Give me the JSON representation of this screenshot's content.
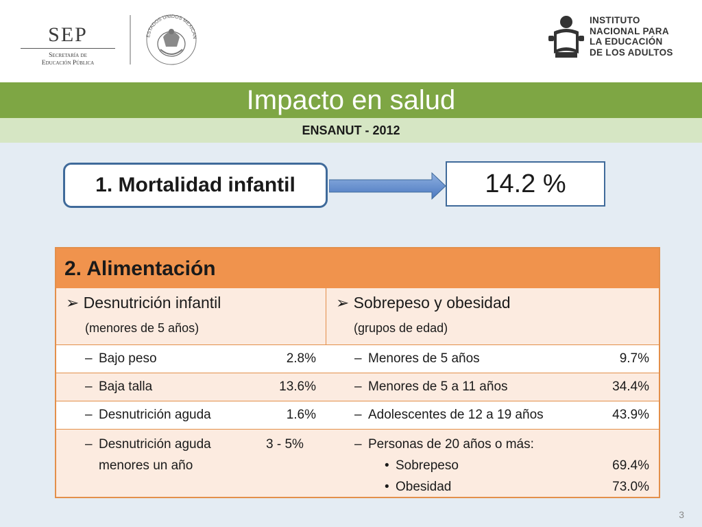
{
  "header": {
    "sep": {
      "title": "SEP",
      "subtitle_line1": "Secretaría de",
      "subtitle_line2": "Educación Pública"
    },
    "seal": {
      "caption": "ESTADOS UNIDOS MEXICANOS"
    },
    "inea": {
      "line1": "INSTITUTO",
      "line2": "NACIONAL PARA",
      "line3": "LA EDUCACIÓN",
      "line4": "DE LOS ADULTOS"
    }
  },
  "title": "Impacto en salud",
  "subtitle": "ENSANUT - 2012",
  "mortalidad": {
    "label": "1. Mortalidad infantil",
    "value": "14.2 %"
  },
  "alimentacion": {
    "heading": "2. Alimentación",
    "left": {
      "title": "Desnutrición infantil",
      "subtitle": "(menores de 5 años)",
      "rows": [
        {
          "label": "Bajo peso",
          "value": "2.8%"
        },
        {
          "label": "Baja talla",
          "value": "13.6%"
        },
        {
          "label": "Desnutrición aguda",
          "value": "1.6%"
        },
        {
          "label_line1": "Desnutrición aguda",
          "label_line2": "menores un año",
          "value": "3 - 5%"
        }
      ]
    },
    "right": {
      "title": "Sobrepeso y obesidad",
      "subtitle": "(grupos de edad)",
      "rows": [
        {
          "label": "Menores de 5 años",
          "value": "9.7%"
        },
        {
          "label": "Menores de 5 a 11 años",
          "value": "34.4%"
        },
        {
          "label": "Adolescentes de 12 a 19 años",
          "value": "43.9%"
        },
        {
          "label": "Personas de 20 años o más:",
          "sub": [
            {
              "label": "Sobrepeso",
              "value": "69.4%"
            },
            {
              "label": "Obesidad",
              "value": "73.0%"
            }
          ]
        }
      ]
    }
  },
  "page_number": "3",
  "colors": {
    "green": "#7ea644",
    "light_green": "#d6e6c4",
    "orange": "#f0934d",
    "peach": "#fcebe0",
    "blue_border": "#3f6a9a",
    "background": "#e4ecf3"
  }
}
